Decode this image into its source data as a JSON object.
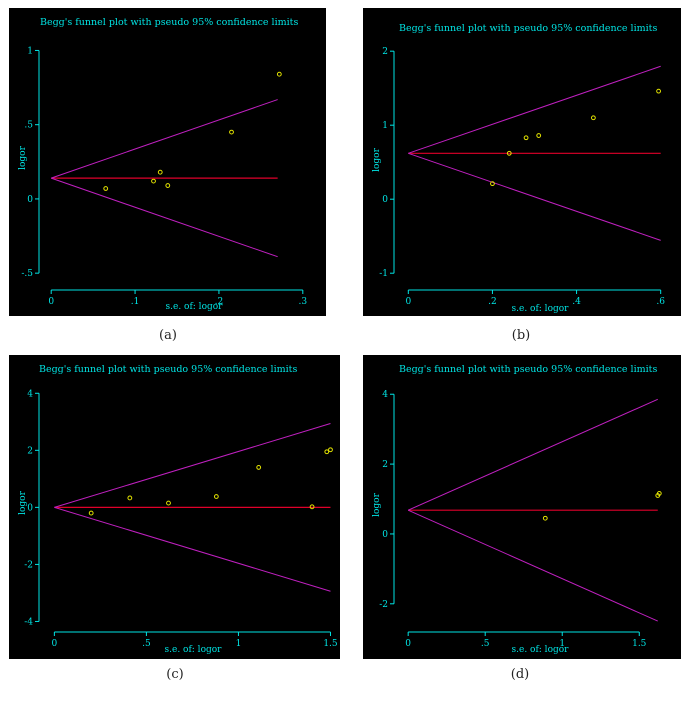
{
  "colors": {
    "background": "#000000",
    "axis": "#00e5e5",
    "text": "#00e5e5",
    "pooled_line": "#e0002a",
    "confidence_limits": "#c020c0",
    "points": "#e5e500"
  },
  "chart_data": [
    {
      "type": "scatter",
      "caption": "(a)",
      "title": "Begg's funnel plot with pseudo 95% confidence limits",
      "xlabel": "s.e. of: logor",
      "ylabel": "logor",
      "xlim": [
        -0.005,
        0.305
      ],
      "ylim": [
        -0.6,
        1.03
      ],
      "xticks": [
        0,
        0.1,
        0.2,
        0.3
      ],
      "xtick_labels": [
        "0",
        ".1",
        ".2",
        ".3"
      ],
      "yticks": [
        -0.5,
        0,
        0.5,
        1
      ],
      "ytick_labels": [
        "-.5",
        "0",
        ".5",
        "1"
      ],
      "pooled_estimate": 0.14,
      "limits_end_x": 0.27,
      "points": [
        [
          0.065,
          0.07
        ],
        [
          0.122,
          0.12
        ],
        [
          0.13,
          0.18
        ],
        [
          0.139,
          0.09
        ],
        [
          0.215,
          0.45
        ],
        [
          0.272,
          0.84
        ]
      ]
    },
    {
      "type": "scatter",
      "caption": "(b)",
      "title": "Begg's funnel plot with pseudo 95% confidence limits",
      "xlabel": "s.e. of: logor",
      "ylabel": "logor",
      "xlim": [
        -0.015,
        0.615
      ],
      "ylim": [
        -1.2,
        2.07
      ],
      "xticks": [
        0,
        0.2,
        0.4,
        0.6
      ],
      "xtick_labels": [
        "0",
        ".2",
        ".4",
        ".6"
      ],
      "yticks": [
        -1,
        0,
        1,
        2
      ],
      "ytick_labels": [
        "-1",
        "0",
        "1",
        "2"
      ],
      "pooled_estimate": 0.62,
      "limits_end_x": 0.6,
      "points": [
        [
          0.2,
          0.21
        ],
        [
          0.24,
          0.62
        ],
        [
          0.28,
          0.83
        ],
        [
          0.31,
          0.86
        ],
        [
          0.44,
          1.1
        ],
        [
          0.595,
          1.46
        ]
      ]
    },
    {
      "type": "scatter",
      "caption": "(c)",
      "title": "Begg's funnel plot with pseudo 95% confidence limits",
      "xlabel": "s.e. of: logor",
      "ylabel": "logor",
      "xlim": [
        -0.04,
        1.53
      ],
      "ylim": [
        -4.3,
        4.15
      ],
      "xticks": [
        0,
        0.5,
        1,
        1.5
      ],
      "xtick_labels": [
        "0",
        ".5",
        "1",
        "1.5"
      ],
      "yticks": [
        -4,
        -2,
        0,
        2,
        4
      ],
      "ytick_labels": [
        "-4",
        "-2",
        "0",
        "2",
        "4"
      ],
      "pooled_estimate": 0.0,
      "limits_end_x": 1.5,
      "points": [
        [
          0.2,
          -0.2
        ],
        [
          0.41,
          0.33
        ],
        [
          0.62,
          0.15
        ],
        [
          0.88,
          0.38
        ],
        [
          1.11,
          1.4
        ],
        [
          1.4,
          0.02
        ],
        [
          1.48,
          1.95
        ],
        [
          1.5,
          2.02
        ]
      ]
    },
    {
      "type": "scatter",
      "caption": "(d)",
      "title": "Begg's funnel plot with pseudo 95% confidence limits",
      "xlabel": "s.e. of: logor",
      "ylabel": "logor",
      "xlim": [
        -0.04,
        1.68
      ],
      "ylim": [
        -2.75,
        4.15
      ],
      "xticks": [
        0,
        0.5,
        1,
        1.5
      ],
      "xtick_labels": [
        "0",
        ".5",
        "1",
        "1.5"
      ],
      "yticks": [
        -2,
        0,
        2,
        4
      ],
      "ytick_labels": [
        "-2",
        "0",
        "2",
        "4"
      ],
      "pooled_estimate": 0.68,
      "limits_end_x": 1.62,
      "points": [
        [
          0.89,
          0.45
        ],
        [
          1.62,
          1.1
        ],
        [
          1.63,
          1.16
        ]
      ]
    }
  ]
}
